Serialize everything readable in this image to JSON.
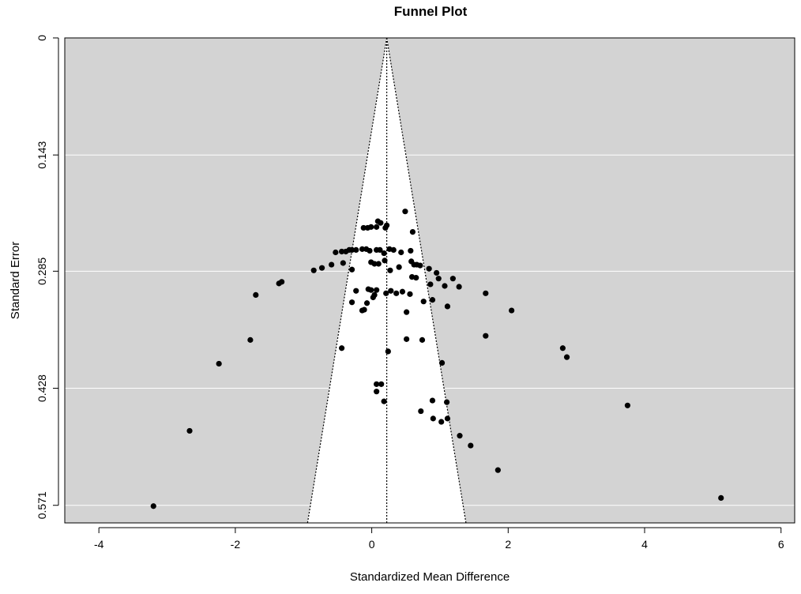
{
  "chart_data": {
    "type": "scatter",
    "title": "Funnel Plot",
    "xlabel": "Standardized Mean Difference",
    "ylabel": "Standard Error",
    "xlim": [
      -4.5,
      6.2
    ],
    "ylim": [
      0,
      0.5925
    ],
    "y_inverted": true,
    "x_ticks": [
      -4,
      -2,
      0,
      2,
      4,
      6
    ],
    "x_tick_labels": [
      "-4",
      "-2",
      "0",
      "2",
      "4",
      "6"
    ],
    "y_ticks": [
      0,
      0.143,
      0.285,
      0.428,
      0.571
    ],
    "y_tick_labels": [
      "0",
      "0.143",
      "0.285",
      "0.428",
      "0.571"
    ],
    "grid": true,
    "pooled_estimate": 0.22,
    "funnel_lines": "pseudo 95% CI",
    "colors": {
      "panel": "#d3d3d3",
      "funnel": "#ffffff",
      "grid": "#ffffff",
      "points": "#000000"
    },
    "points": [
      {
        "x": 0.49,
        "y": 0.212
      },
      {
        "x": -0.12,
        "y": 0.232
      },
      {
        "x": -0.06,
        "y": 0.232
      },
      {
        "x": -0.01,
        "y": 0.231
      },
      {
        "x": 0.07,
        "y": 0.231
      },
      {
        "x": 0.09,
        "y": 0.224
      },
      {
        "x": 0.13,
        "y": 0.226
      },
      {
        "x": 0.2,
        "y": 0.232
      },
      {
        "x": 0.22,
        "y": 0.229
      },
      {
        "x": 0.6,
        "y": 0.237
      },
      {
        "x": -0.53,
        "y": 0.262
      },
      {
        "x": -0.44,
        "y": 0.261
      },
      {
        "x": -0.38,
        "y": 0.261
      },
      {
        "x": -0.33,
        "y": 0.259
      },
      {
        "x": -0.29,
        "y": 0.259
      },
      {
        "x": -0.23,
        "y": 0.259
      },
      {
        "x": -0.14,
        "y": 0.258
      },
      {
        "x": -0.08,
        "y": 0.258
      },
      {
        "x": -0.03,
        "y": 0.26
      },
      {
        "x": 0.07,
        "y": 0.259
      },
      {
        "x": 0.12,
        "y": 0.259
      },
      {
        "x": 0.18,
        "y": 0.263
      },
      {
        "x": 0.26,
        "y": 0.258
      },
      {
        "x": 0.32,
        "y": 0.259
      },
      {
        "x": 0.43,
        "y": 0.262
      },
      {
        "x": 0.57,
        "y": 0.26
      },
      {
        "x": -0.85,
        "y": 0.284
      },
      {
        "x": -0.73,
        "y": 0.281
      },
      {
        "x": -0.59,
        "y": 0.277
      },
      {
        "x": -0.42,
        "y": 0.275
      },
      {
        "x": -0.29,
        "y": 0.283
      },
      {
        "x": -0.01,
        "y": 0.274
      },
      {
        "x": 0.04,
        "y": 0.276
      },
      {
        "x": 0.1,
        "y": 0.276
      },
      {
        "x": 0.19,
        "y": 0.272
      },
      {
        "x": 0.27,
        "y": 0.284
      },
      {
        "x": 0.4,
        "y": 0.28
      },
      {
        "x": 0.58,
        "y": 0.273
      },
      {
        "x": 0.62,
        "y": 0.277
      },
      {
        "x": 0.66,
        "y": 0.277
      },
      {
        "x": 0.71,
        "y": 0.278
      },
      {
        "x": 0.84,
        "y": 0.282
      },
      {
        "x": 0.59,
        "y": 0.292
      },
      {
        "x": 0.65,
        "y": 0.293
      },
      {
        "x": 0.95,
        "y": 0.287
      },
      {
        "x": 0.98,
        "y": 0.294
      },
      {
        "x": 1.19,
        "y": 0.294
      },
      {
        "x": 1.07,
        "y": 0.303
      },
      {
        "x": 0.86,
        "y": 0.301
      },
      {
        "x": 1.28,
        "y": 0.304
      },
      {
        "x": -1.32,
        "y": 0.298
      },
      {
        "x": -1.36,
        "y": 0.3
      },
      {
        "x": -0.23,
        "y": 0.309
      },
      {
        "x": -0.05,
        "y": 0.307
      },
      {
        "x": -0.01,
        "y": 0.308
      },
      {
        "x": 0.07,
        "y": 0.308
      },
      {
        "x": 0.21,
        "y": 0.312
      },
      {
        "x": 0.28,
        "y": 0.309
      },
      {
        "x": 0.36,
        "y": 0.312
      },
      {
        "x": 0.45,
        "y": 0.31
      },
      {
        "x": 0.56,
        "y": 0.313
      },
      {
        "x": 0.04,
        "y": 0.314
      },
      {
        "x": 0.02,
        "y": 0.317
      },
      {
        "x": -1.7,
        "y": 0.314
      },
      {
        "x": 1.67,
        "y": 0.312
      },
      {
        "x": -0.29,
        "y": 0.323
      },
      {
        "x": -0.07,
        "y": 0.324
      },
      {
        "x": -0.11,
        "y": 0.332
      },
      {
        "x": -0.14,
        "y": 0.333
      },
      {
        "x": 0.89,
        "y": 0.32
      },
      {
        "x": 0.76,
        "y": 0.322
      },
      {
        "x": 0.51,
        "y": 0.335
      },
      {
        "x": 1.11,
        "y": 0.328
      },
      {
        "x": 2.05,
        "y": 0.333
      },
      {
        "x": -1.78,
        "y": 0.369
      },
      {
        "x": 0.51,
        "y": 0.368
      },
      {
        "x": 0.74,
        "y": 0.369
      },
      {
        "x": 1.67,
        "y": 0.364
      },
      {
        "x": 2.8,
        "y": 0.379
      },
      {
        "x": 2.86,
        "y": 0.39
      },
      {
        "x": -0.44,
        "y": 0.379
      },
      {
        "x": 0.24,
        "y": 0.383
      },
      {
        "x": 1.03,
        "y": 0.397
      },
      {
        "x": -2.24,
        "y": 0.398
      },
      {
        "x": 0.07,
        "y": 0.423
      },
      {
        "x": 0.14,
        "y": 0.423
      },
      {
        "x": 0.07,
        "y": 0.432
      },
      {
        "x": 0.18,
        "y": 0.444
      },
      {
        "x": 0.89,
        "y": 0.443
      },
      {
        "x": 1.1,
        "y": 0.445
      },
      {
        "x": 0.72,
        "y": 0.456
      },
      {
        "x": 0.9,
        "y": 0.465
      },
      {
        "x": 1.02,
        "y": 0.469
      },
      {
        "x": 1.11,
        "y": 0.465
      },
      {
        "x": 3.75,
        "y": 0.449
      },
      {
        "x": -2.67,
        "y": 0.48
      },
      {
        "x": 1.29,
        "y": 0.486
      },
      {
        "x": 1.45,
        "y": 0.498
      },
      {
        "x": 1.85,
        "y": 0.528
      },
      {
        "x": 5.12,
        "y": 0.562
      },
      {
        "x": -3.2,
        "y": 0.572
      }
    ]
  }
}
